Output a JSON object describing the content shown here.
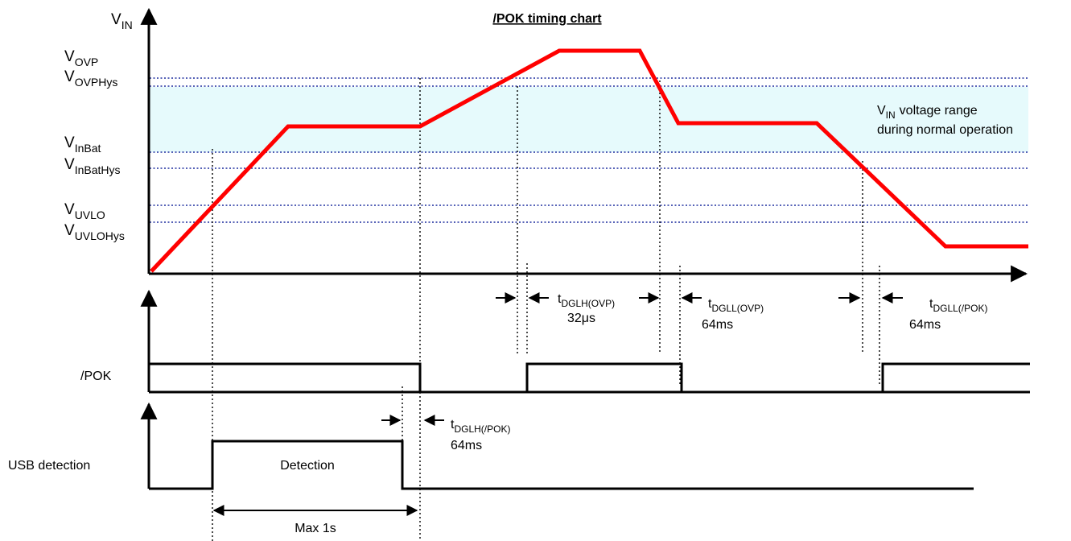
{
  "title": "/POK timing chart",
  "y_axis_label": {
    "main": "V",
    "sub": "IN"
  },
  "levels": [
    {
      "main": "V",
      "sub": "OVP"
    },
    {
      "main": "V",
      "sub": "OVPHys"
    },
    {
      "main": "V",
      "sub": "InBat"
    },
    {
      "main": "V",
      "sub": "InBatHys"
    },
    {
      "main": "V",
      "sub": "UVLO"
    },
    {
      "main": "V",
      "sub": "UVLOHys"
    }
  ],
  "range_note": {
    "main": "V",
    "sub": "IN",
    "rest": "voltage range",
    "line2": "during normal operation"
  },
  "timings": [
    {
      "main": "t",
      "sub": "DGLH(OVP)",
      "value": "32μs"
    },
    {
      "main": "t",
      "sub": "DGLL(OVP)",
      "value": "64ms"
    },
    {
      "main": "t",
      "sub": "DGLL(/POK)",
      "value": "64ms"
    },
    {
      "main": "t",
      "sub": "DGLH(/POK)",
      "value": "64ms"
    }
  ],
  "signals": [
    "/POK",
    "USB detection"
  ],
  "detection_label": "Detection",
  "max_label": "Max 1s"
}
